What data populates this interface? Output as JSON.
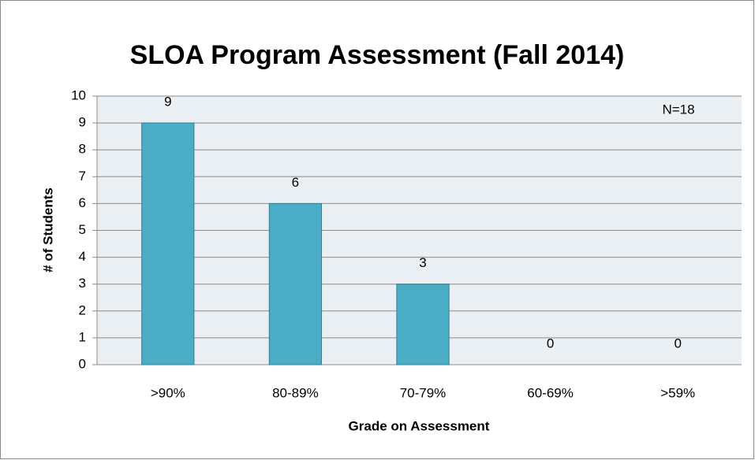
{
  "chart_data": {
    "type": "bar",
    "title": "SLOA Program Assessment (Fall 2014)",
    "x_label": "Grade on Assessment",
    "y_label": "# of Students",
    "annotation": "N=18",
    "categories": [
      ">90%",
      "80-89%",
      "70-79%",
      "60-69%",
      ">59%"
    ],
    "values": [
      9,
      6,
      3,
      0,
      0
    ],
    "color": "#4bacc6",
    "ylim": [
      0,
      10
    ],
    "yticks": [
      0,
      1,
      2,
      3,
      4,
      5,
      6,
      7,
      8,
      9,
      10
    ],
    "grid": true
  }
}
